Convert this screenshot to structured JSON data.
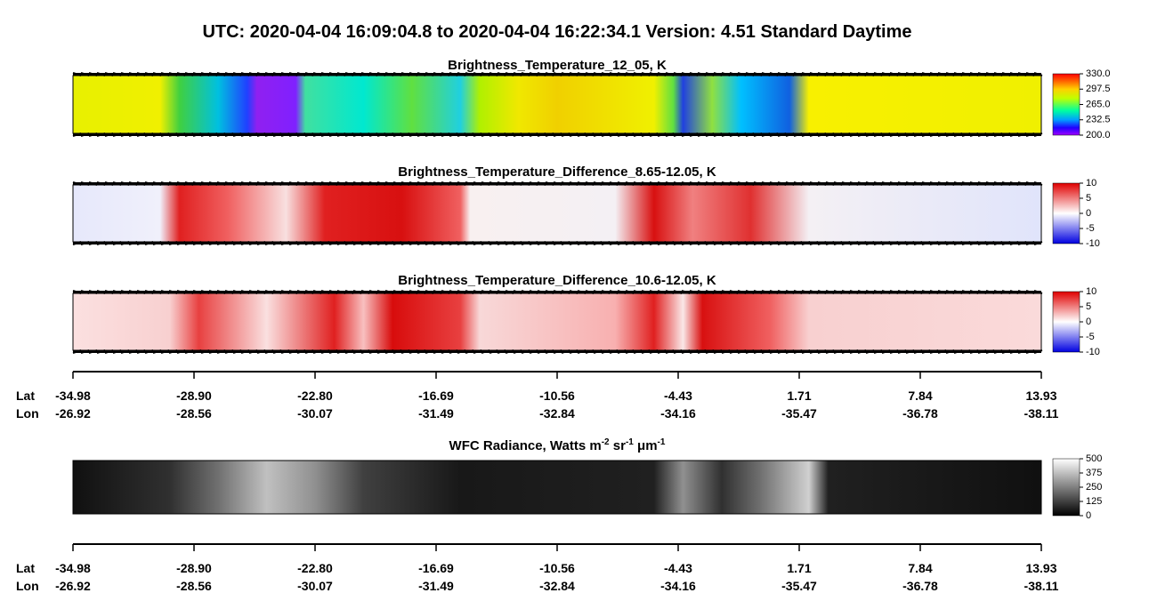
{
  "title": "UTC:  2020-04-04   16:09:04.8  to  2020-04-04   16:22:34.1    Version: 4.51  Standard Daytime",
  "panels": [
    {
      "title": "Brightness_Temperature_12_05, K",
      "colorbar": [
        "330.0",
        "297.5",
        "265.0",
        "232.5",
        "200.0"
      ]
    },
    {
      "title": "Brightness_Temperature_Difference_8.65-12.05, K",
      "colorbar": [
        "10",
        "5",
        "0",
        "-5",
        "-10"
      ]
    },
    {
      "title": "Brightness_Temperature_Difference_10.6-12.05, K",
      "colorbar": [
        "10",
        "5",
        "0",
        "-5",
        "-10"
      ]
    },
    {
      "title_parts": [
        "WFC Radiance, Watts m",
        "-2",
        " sr",
        "-1",
        " μm",
        "-1"
      ],
      "colorbar": [
        "500",
        "375",
        "250",
        "125",
        "0"
      ]
    }
  ],
  "axes": [
    {
      "lat_label": "Lat",
      "lon_label": "Lon",
      "lat": [
        "-34.98",
        "-28.90",
        "-22.80",
        "-16.69",
        "-10.56",
        "-4.43",
        "1.71",
        "7.84",
        "13.93"
      ],
      "lon": [
        "-26.92",
        "-28.56",
        "-30.07",
        "-31.49",
        "-32.84",
        "-34.16",
        "-35.47",
        "-36.78",
        "-38.11"
      ]
    },
    {
      "lat_label": "Lat",
      "lon_label": "Lon",
      "lat": [
        "-34.98",
        "-28.90",
        "-22.80",
        "-16.69",
        "-10.56",
        "-4.43",
        "1.71",
        "7.84",
        "13.93"
      ],
      "lon": [
        "-26.92",
        "-28.56",
        "-30.07",
        "-31.49",
        "-32.84",
        "-34.16",
        "-35.47",
        "-36.78",
        "-38.11"
      ]
    }
  ]
}
